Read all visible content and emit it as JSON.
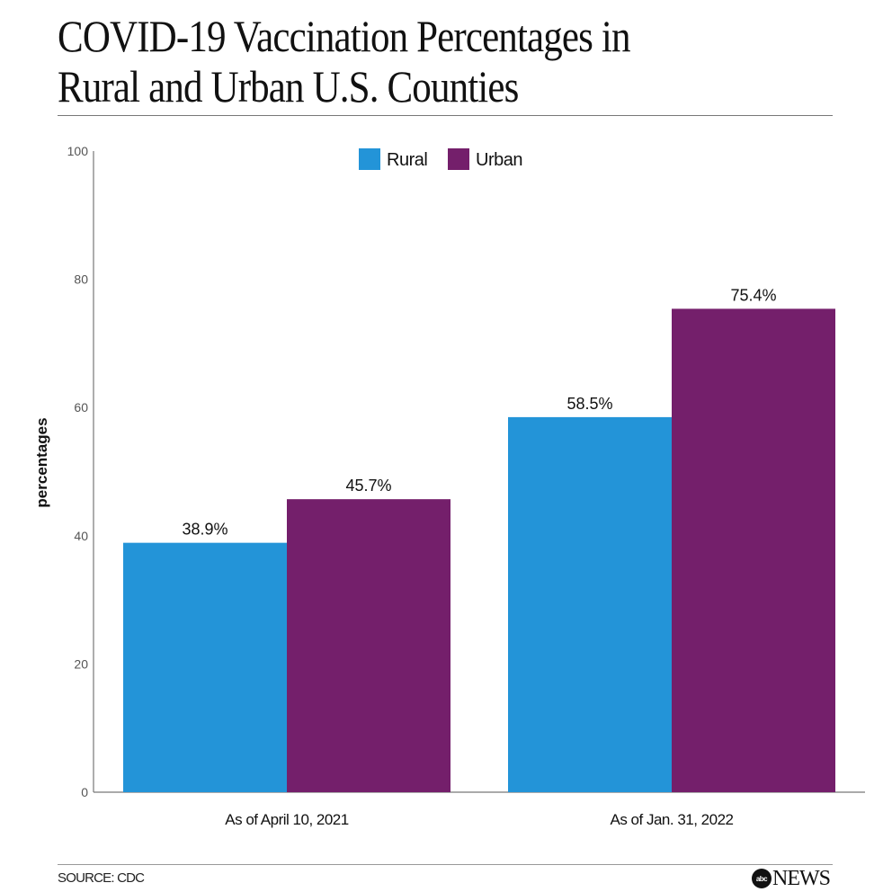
{
  "title_lines": [
    "COVID-19 Vaccination Percentages in",
    "Rural and Urban U.S. Counties"
  ],
  "footer": {
    "source": "SOURCE: CDC",
    "logo_abc": "abc",
    "logo_news": "NEWS"
  },
  "chart_data": {
    "type": "bar",
    "title": "COVID-19 Vaccination Percentages in Rural and Urban U.S. Counties",
    "xlabel": "",
    "ylabel": "percentages",
    "ylim": [
      0,
      100
    ],
    "yticks": [
      0,
      20,
      40,
      60,
      80,
      100
    ],
    "grid": false,
    "legend_position": "top-center",
    "categories": [
      "As of April 10, 2021",
      "As of Jan. 31, 2022"
    ],
    "series": [
      {
        "name": "Rural",
        "color": "#2394d8",
        "values": [
          38.9,
          58.5
        ],
        "labels": [
          "38.9%",
          "58.5%"
        ]
      },
      {
        "name": "Urban",
        "color": "#741f6b",
        "values": [
          45.7,
          75.4
        ],
        "labels": [
          "45.7%",
          "75.4%"
        ]
      }
    ]
  }
}
